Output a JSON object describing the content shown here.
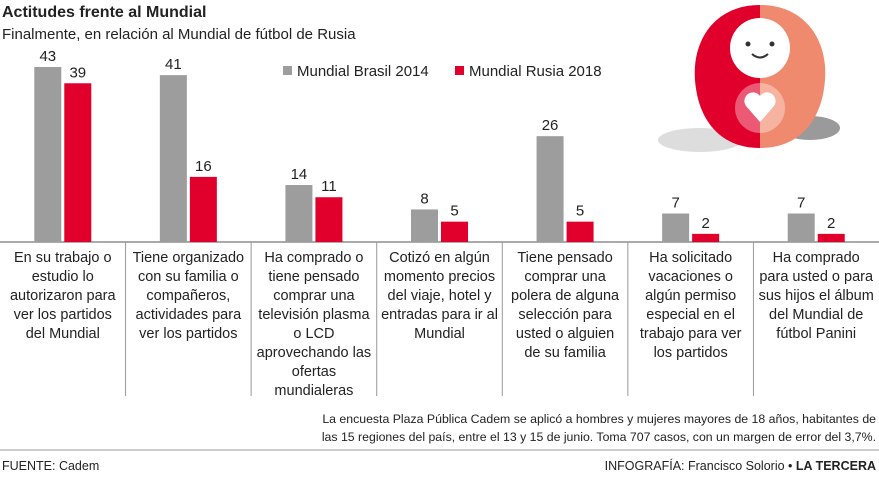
{
  "chart_data": {
    "type": "bar",
    "title": "Actitudes frente al Mundial",
    "subtitle": "Finalmente, en relación al Mundial de fútbol de Rusia",
    "categories": [
      "En su trabajo o estudio lo autorizaron para ver los partidos del Mundial",
      "Tiene organizado con su familia o compañeros, actividades para ver los partidos",
      "Ha comprado o tiene pensado comprar una televisión plasma o LCD aprovechando las ofertas mundialeras",
      "Cotizó en algún momento precios del viaje, hotel y entradas para ir al Mundial",
      "Tiene pensado comprar una polera de alguna selección para usted o alguien de su familia",
      "Ha solicitado vacaciones o algún permiso especial en el trabajo para ver los partidos",
      "Ha comprado para usted o para sus hijos el álbum del Mundial de fútbol Panini"
    ],
    "series": [
      {
        "name": "Mundial Brasil 2014",
        "color": "#9d9d9d",
        "values": [
          43,
          41,
          14,
          8,
          26,
          7,
          7
        ]
      },
      {
        "name": "Mundial Rusia 2018",
        "color": "#e0002b",
        "values": [
          39,
          16,
          11,
          5,
          5,
          2,
          2
        ]
      }
    ],
    "note": "La encuesta Plaza Pública Cadem se aplicó a hombres y mujeres mayores de 18 años, habitantes de las 15 regiones del país, entre el 13 y 15 de junio. Toma 707 casos, con un margen de error del 3,7%.",
    "source": "FUENTE: Cadem",
    "credit": "INFOGRAFÍA: Francisco Solorio •",
    "publisher": "LA TERCERA"
  }
}
